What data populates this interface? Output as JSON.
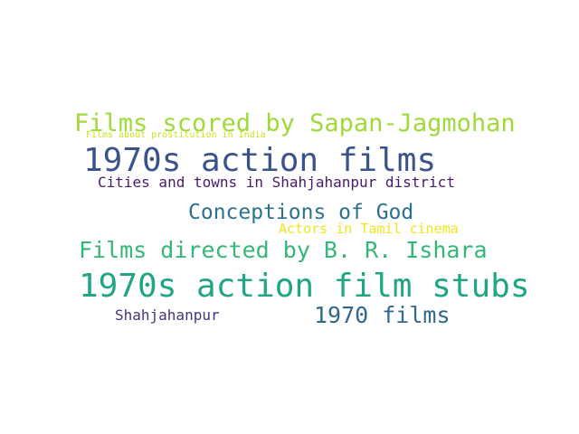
{
  "word_cloud": {
    "words": [
      {
        "id": "w-scored",
        "text": "Films scored by Sapan-Jagmohan",
        "color": "#a0da39"
      },
      {
        "id": "w-prost",
        "text": "Films about prostitution in India",
        "color": "#cde11d"
      },
      {
        "id": "w-action",
        "text": "1970s action films",
        "color": "#3b528b"
      },
      {
        "id": "w-cities",
        "text": "Cities and towns in Shahjahanpur district",
        "color": "#481a6c"
      },
      {
        "id": "w-god",
        "text": "Conceptions of God",
        "color": "#2c728e"
      },
      {
        "id": "w-tamil",
        "text": "Actors in Tamil cinema",
        "color": "#f2e51d"
      },
      {
        "id": "w-ishara",
        "text": "Films directed by B. R. Ishara",
        "color": "#35b779"
      },
      {
        "id": "w-stubs",
        "text": "1970s action film stubs",
        "color": "#21a685"
      },
      {
        "id": "w-shahj",
        "text": "Shahjahanpur",
        "color": "#46337e"
      },
      {
        "id": "w-1970films",
        "text": "1970 films",
        "color": "#31688e"
      }
    ]
  }
}
